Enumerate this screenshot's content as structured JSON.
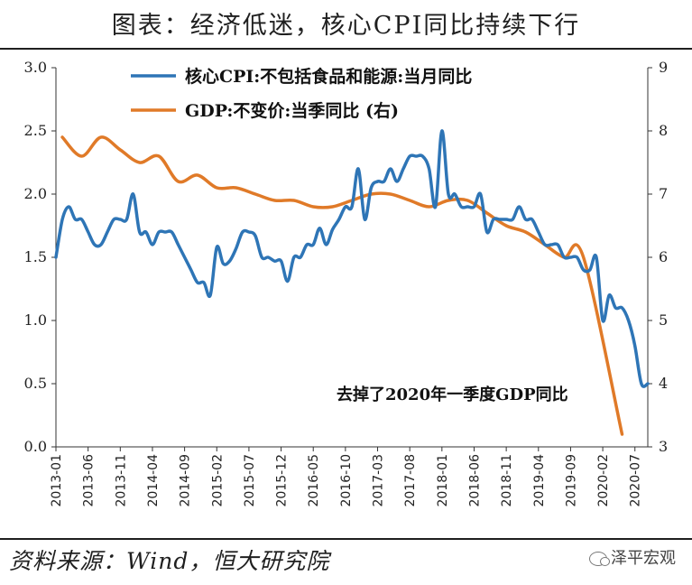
{
  "header": {
    "title": "图表：经济低迷，核心CPI同比持续下行"
  },
  "footer": {
    "source": "资料来源：Wind，恒大研究院",
    "watermark": "泽平宏观"
  },
  "chart_data": {
    "type": "line",
    "title": "图表：经济低迷，核心CPI同比持续下行",
    "annotation": "去掉了2020年一季度GDP同比",
    "yleft": {
      "lim": [
        0.0,
        3.0
      ],
      "ticks": [
        "0.0",
        "0.5",
        "1.0",
        "1.5",
        "2.0",
        "2.5",
        "3.0"
      ]
    },
    "yright": {
      "lim": [
        3,
        9
      ],
      "ticks": [
        "3",
        "4",
        "5",
        "6",
        "7",
        "8",
        "9"
      ]
    },
    "x_ticks": [
      "2013-01",
      "2013-06",
      "2013-11",
      "2014-04",
      "2014-09",
      "2015-02",
      "2015-07",
      "2015-12",
      "2016-05",
      "2016-10",
      "2017-03",
      "2017-08",
      "2018-01",
      "2018-06",
      "2018-11",
      "2019-04",
      "2019-09",
      "2020-02",
      "2020-07"
    ],
    "x_range": [
      "2013-01",
      "2020-09"
    ],
    "series": [
      {
        "name": "核心CPI:不包括食品和能源:当月同比",
        "axis": "left",
        "color": "#2e75b6",
        "start": "2013-01",
        "step_months": 1,
        "values": [
          1.5,
          1.8,
          1.9,
          1.8,
          1.8,
          1.7,
          1.6,
          1.6,
          1.7,
          1.8,
          1.8,
          1.8,
          2.0,
          1.7,
          1.7,
          1.6,
          1.7,
          1.7,
          1.7,
          1.6,
          1.5,
          1.4,
          1.3,
          1.3,
          1.2,
          1.58,
          1.45,
          1.47,
          1.57,
          1.7,
          1.7,
          1.67,
          1.5,
          1.5,
          1.47,
          1.47,
          1.31,
          1.5,
          1.5,
          1.6,
          1.6,
          1.73,
          1.6,
          1.72,
          1.8,
          1.9,
          1.9,
          2.2,
          1.8,
          2.05,
          2.1,
          2.1,
          2.2,
          2.1,
          2.2,
          2.3,
          2.3,
          2.3,
          2.2,
          1.9,
          2.5,
          2.0,
          2.0,
          1.9,
          1.9,
          1.9,
          2.0,
          1.7,
          1.8,
          1.8,
          1.8,
          1.8,
          1.9,
          1.8,
          1.8,
          1.7,
          1.6,
          1.6,
          1.6,
          1.5,
          1.5,
          1.5,
          1.4,
          1.4,
          1.5,
          1.0,
          1.2,
          1.1,
          1.1,
          1.0,
          0.8,
          0.5,
          0.5
        ],
        "note_end": "2020-09"
      },
      {
        "name": "GDP:不变价:当季同比 (右)",
        "axis": "right",
        "color": "#e07a28",
        "quarters": [
          "2013Q1",
          "2013Q2",
          "2013Q3",
          "2013Q4",
          "2014Q1",
          "2014Q2",
          "2014Q3",
          "2014Q4",
          "2015Q1",
          "2015Q2",
          "2015Q3",
          "2015Q4",
          "2016Q1",
          "2016Q2",
          "2016Q3",
          "2016Q4",
          "2017Q1",
          "2017Q2",
          "2017Q3",
          "2017Q4",
          "2018Q1",
          "2018Q2",
          "2018Q3",
          "2018Q4",
          "2019Q1",
          "2019Q2",
          "2019Q3",
          "2019Q4",
          "2020Q2"
        ],
        "values": [
          7.9,
          7.6,
          7.9,
          7.7,
          7.5,
          7.6,
          7.2,
          7.3,
          7.1,
          7.1,
          7.0,
          6.9,
          6.9,
          6.8,
          6.8,
          6.9,
          7.0,
          7.0,
          6.9,
          6.8,
          6.9,
          6.9,
          6.7,
          6.5,
          6.4,
          6.2,
          6.0,
          6.0,
          3.2
        ]
      }
    ]
  }
}
